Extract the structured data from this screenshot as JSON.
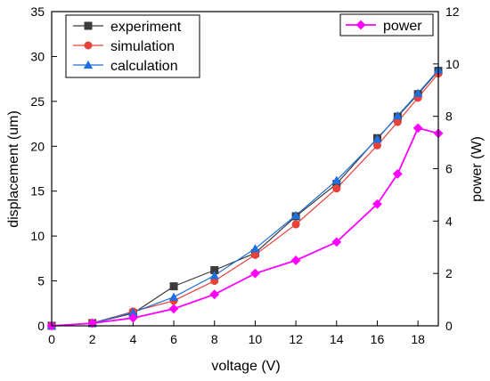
{
  "chart_data": {
    "type": "line",
    "x": [
      0,
      2,
      4,
      6,
      8,
      10,
      12,
      14,
      16,
      17,
      18,
      19
    ],
    "xlabel": "voltage (V)",
    "ylabel": "displacement (um)",
    "y2label": "power (W)",
    "xlim": [
      0,
      19
    ],
    "ylim": [
      0,
      35
    ],
    "y2lim": [
      0,
      12
    ],
    "xticks": [
      "0",
      "2",
      "4",
      "6",
      "8",
      "10",
      "12",
      "14",
      "16",
      "18"
    ],
    "yticks": [
      "0",
      "5",
      "10",
      "15",
      "20",
      "25",
      "30",
      "35"
    ],
    "y2ticks": [
      "0",
      "2",
      "4",
      "6",
      "8",
      "10",
      "12"
    ],
    "grid": false,
    "legend_left": "top-left",
    "legend_right": "top-right",
    "series": [
      {
        "name": "experiment",
        "axis": "left",
        "color": "#3c3c3c",
        "marker": "square",
        "values": [
          0,
          0.3,
          1.4,
          4.4,
          6.2,
          8.1,
          12.2,
          15.8,
          20.9,
          23.3,
          25.8,
          28.4
        ]
      },
      {
        "name": "simulation",
        "axis": "left",
        "color": "#e8413a",
        "marker": "circle",
        "values": [
          0,
          0.3,
          1.6,
          2.8,
          5.0,
          7.9,
          11.3,
          15.3,
          20.1,
          22.7,
          25.4,
          28.1
        ]
      },
      {
        "name": "calculation",
        "axis": "left",
        "color": "#1f6fe0",
        "marker": "triangle",
        "values": [
          0,
          0.3,
          1.5,
          3.2,
          5.6,
          8.6,
          12.3,
          16.2,
          20.8,
          23.4,
          25.9,
          28.5
        ]
      },
      {
        "name": "power",
        "axis": "right",
        "color": "#ff00ff",
        "marker": "diamond",
        "values": [
          0,
          0.1,
          0.3,
          0.65,
          1.2,
          2.0,
          2.5,
          3.2,
          4.65,
          5.8,
          7.55,
          7.35
        ]
      }
    ]
  }
}
